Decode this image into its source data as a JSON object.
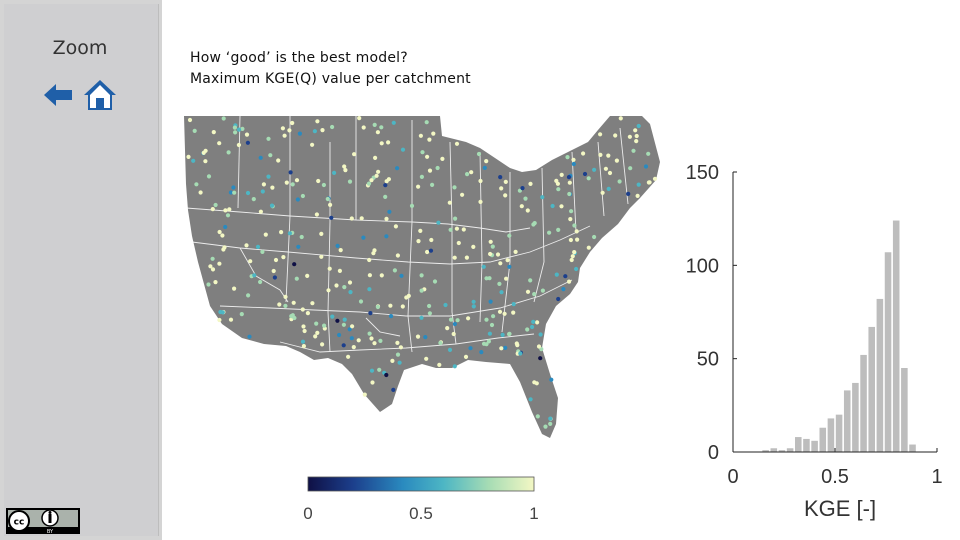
{
  "sidebar": {
    "zoom_label": "Zoom",
    "icons": [
      "arrow-left-icon",
      "home-icon"
    ],
    "license_badge": {
      "cc": "cc",
      "by": "BY"
    }
  },
  "header": {
    "title_line1": "How ‘good’ is the best model?",
    "title_line2": "Maximum KGE(Q) value per catchment"
  },
  "colors": {
    "map_land": "#7f7f7f",
    "state_borders": "#ffffff",
    "colormap": [
      "#0f1045",
      "#1c3f8c",
      "#2a8abf",
      "#4db6c4",
      "#a6dcb4",
      "#f3f7c4"
    ],
    "hist_bars": "#bdbdbd"
  },
  "colorbar": {
    "ticks": [
      "0",
      "0.5",
      "1"
    ]
  },
  "chart_data": {
    "type": "bar",
    "title": "",
    "xlabel": "KGE [-]",
    "ylabel": "",
    "xlim": [
      0,
      1
    ],
    "ylim": [
      0,
      150
    ],
    "xticks": [
      "0",
      "0.5",
      "1"
    ],
    "yticks": [
      "0",
      "50",
      "100",
      "150"
    ],
    "bin_width": 0.04,
    "bin_centers": [
      0.16,
      0.2,
      0.24,
      0.28,
      0.32,
      0.36,
      0.4,
      0.44,
      0.48,
      0.52,
      0.56,
      0.6,
      0.64,
      0.68,
      0.72,
      0.76,
      0.8,
      0.84,
      0.88,
      0.92
    ],
    "values": [
      1,
      2,
      1,
      2,
      8,
      7,
      6,
      13,
      18,
      20,
      33,
      37,
      52,
      67,
      82,
      107,
      124,
      45,
      4,
      0
    ]
  }
}
